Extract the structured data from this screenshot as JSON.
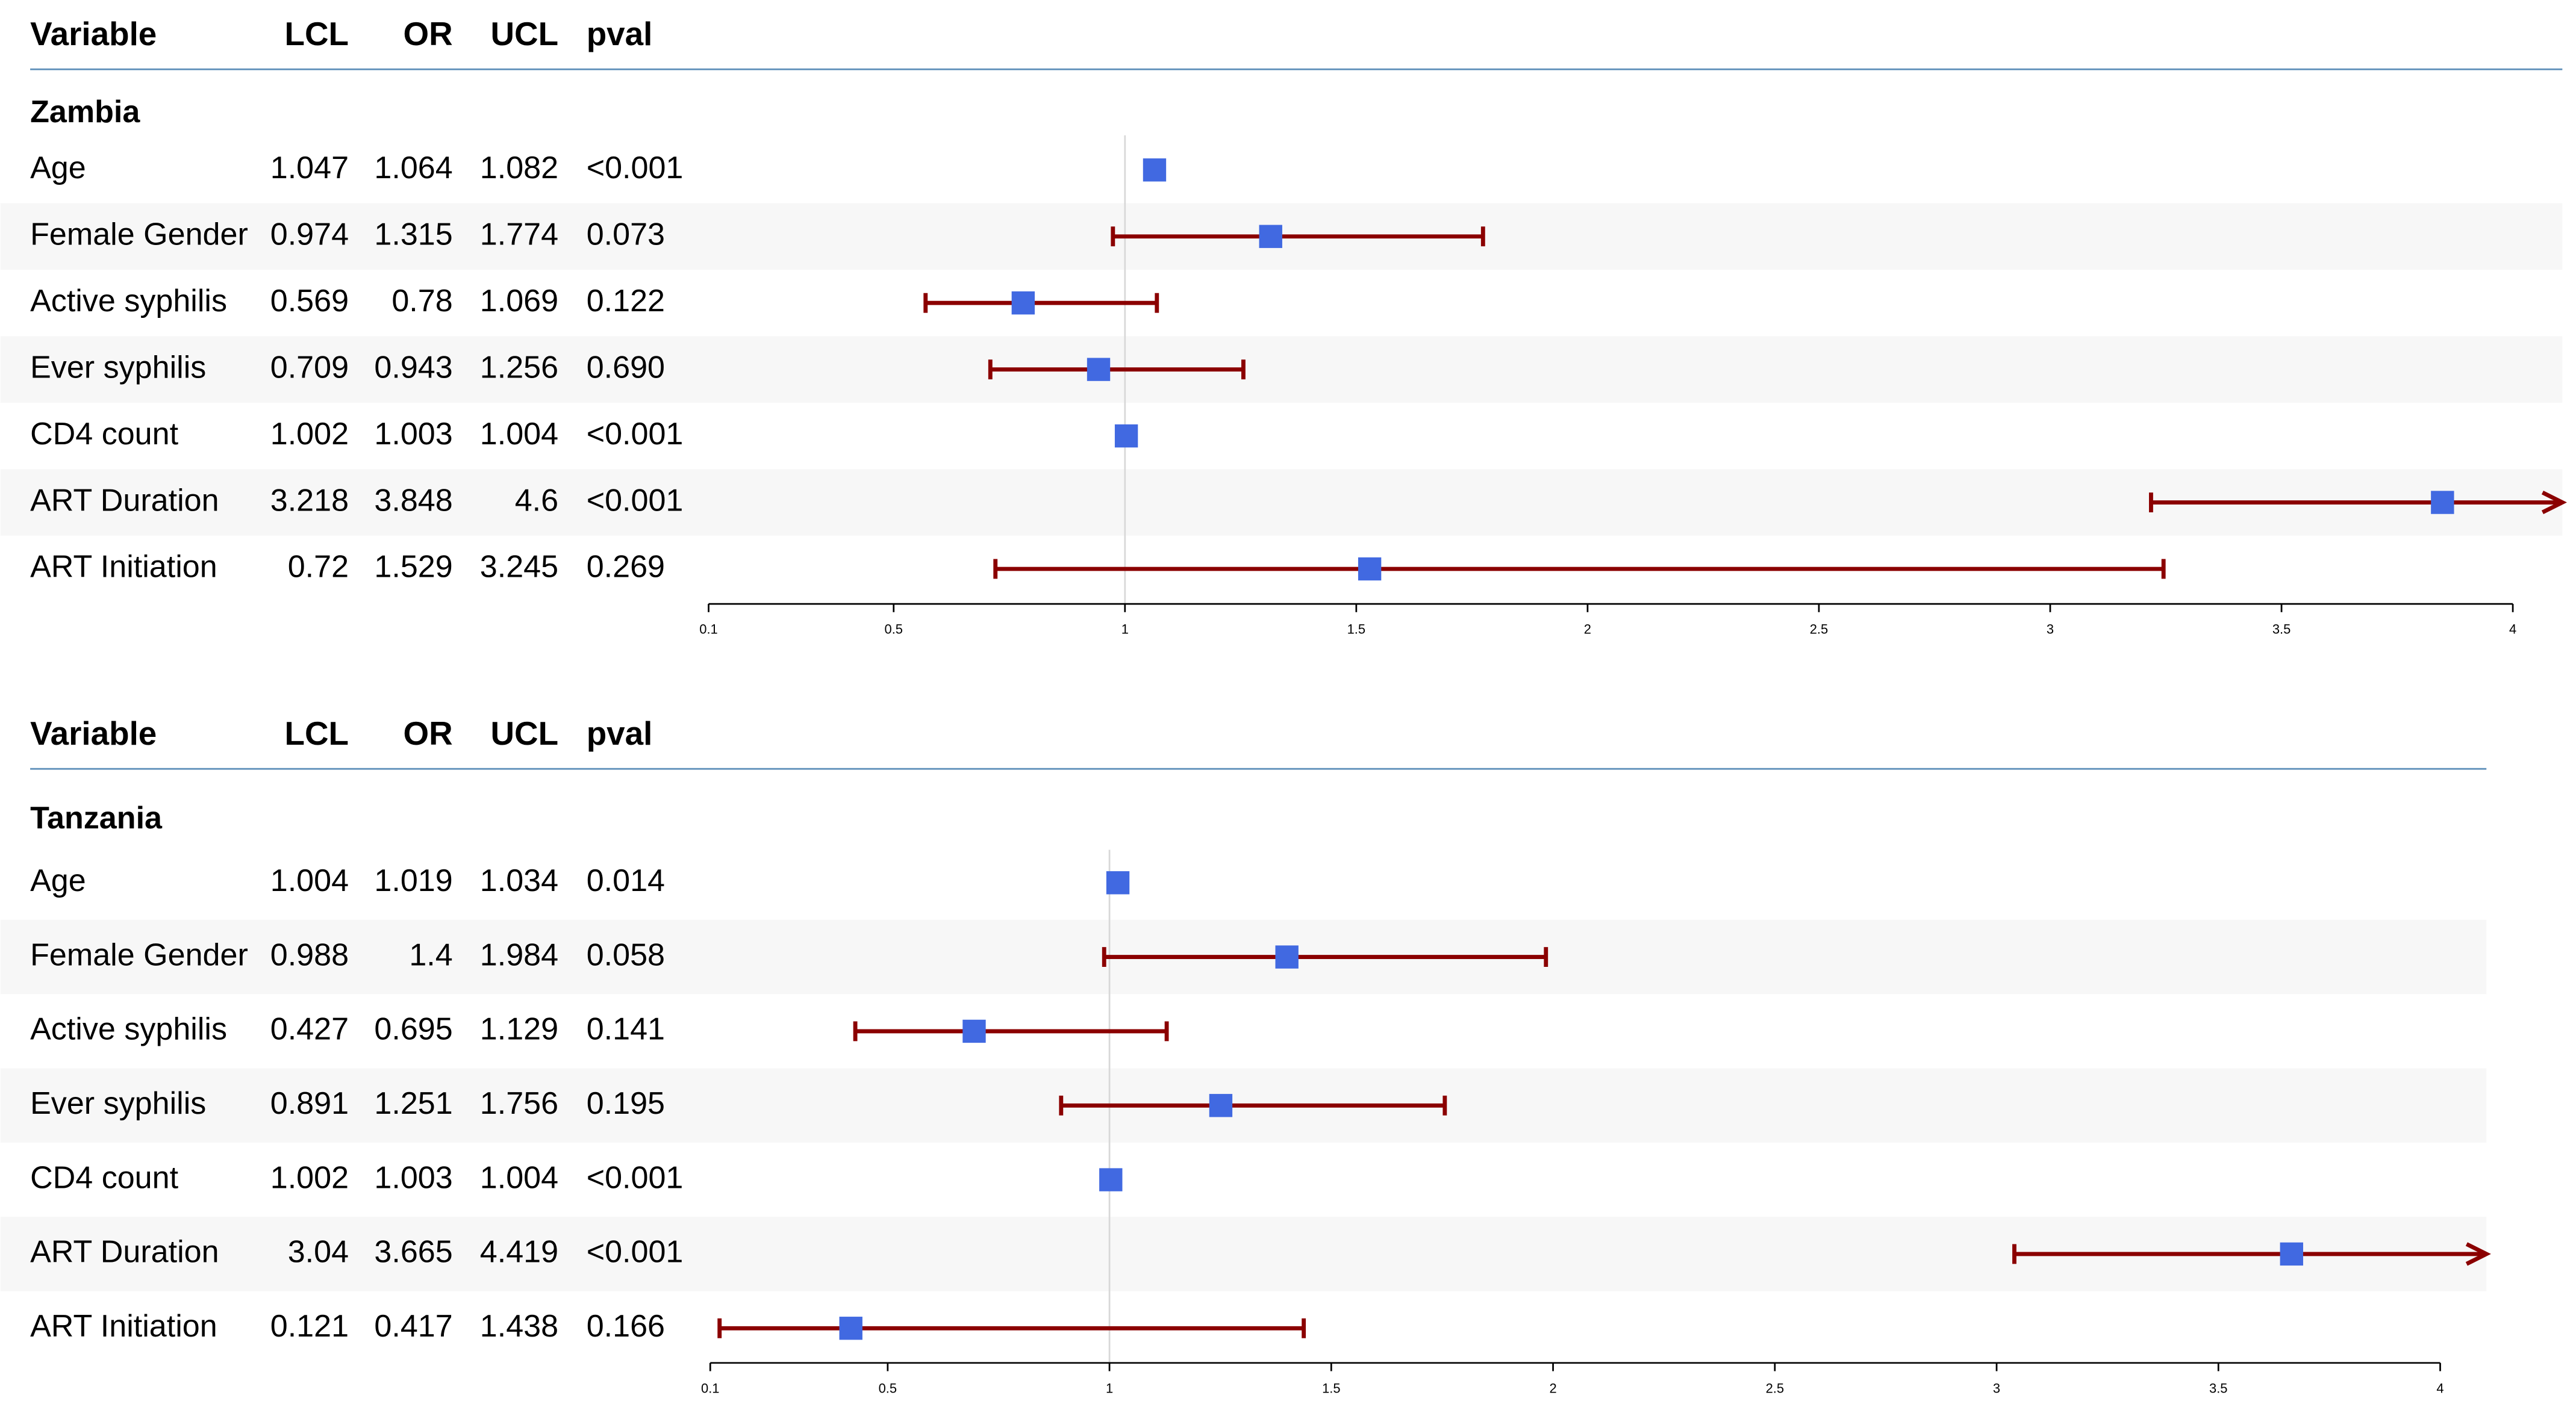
{
  "chart_data": [
    {
      "type": "forest",
      "columns": [
        "Variable",
        "LCL",
        "OR",
        "UCL",
        "pval"
      ],
      "group": "Zambia",
      "rows": [
        {
          "variable": "Age",
          "lcl": 1.047,
          "or": 1.064,
          "ucl": 1.082,
          "pval": "<0.001"
        },
        {
          "variable": "Female Gender",
          "lcl": 0.974,
          "or": 1.315,
          "ucl": 1.774,
          "pval": "0.073"
        },
        {
          "variable": "Active syphilis",
          "lcl": 0.569,
          "or": 0.78,
          "ucl": 1.069,
          "pval": "0.122"
        },
        {
          "variable": "Ever syphilis",
          "lcl": 0.709,
          "or": 0.943,
          "ucl": 1.256,
          "pval": "0.690"
        },
        {
          "variable": "CD4 count",
          "lcl": 1.002,
          "or": 1.003,
          "ucl": 1.004,
          "pval": "<0.001"
        },
        {
          "variable": "ART Duration",
          "lcl": 3.218,
          "or": 3.848,
          "ucl": 4.6,
          "pval": "<0.001"
        },
        {
          "variable": "ART Initiation",
          "lcl": 0.72,
          "or": 1.529,
          "ucl": 3.245,
          "pval": "0.269"
        }
      ],
      "xlim": [
        0.1,
        4
      ],
      "xticks": [
        0.1,
        0.5,
        1,
        1.5,
        2,
        2.5,
        3,
        3.5,
        4
      ],
      "ref_line": 1,
      "point_color": "#4169e1",
      "ci_color": "#8b0000"
    },
    {
      "type": "forest",
      "columns": [
        "Variable",
        "LCL",
        "OR",
        "UCL",
        "pval"
      ],
      "group": "Tanzania",
      "rows": [
        {
          "variable": "Age",
          "lcl": 1.004,
          "or": 1.019,
          "ucl": 1.034,
          "pval": "0.014"
        },
        {
          "variable": "Female Gender",
          "lcl": 0.988,
          "or": 1.4,
          "ucl": 1.984,
          "pval": "0.058"
        },
        {
          "variable": "Active syphilis",
          "lcl": 0.427,
          "or": 0.695,
          "ucl": 1.129,
          "pval": "0.141"
        },
        {
          "variable": "Ever syphilis",
          "lcl": 0.891,
          "or": 1.251,
          "ucl": 1.756,
          "pval": "0.195"
        },
        {
          "variable": "CD4 count",
          "lcl": 1.002,
          "or": 1.003,
          "ucl": 1.004,
          "pval": "<0.001"
        },
        {
          "variable": "ART Duration",
          "lcl": 3.04,
          "or": 3.665,
          "ucl": 4.419,
          "pval": "<0.001"
        },
        {
          "variable": "ART Initiation",
          "lcl": 0.121,
          "or": 0.417,
          "ucl": 1.438,
          "pval": "0.166"
        }
      ],
      "xlim": [
        0.1,
        4
      ],
      "xticks": [
        0.1,
        0.5,
        1,
        1.5,
        2,
        2.5,
        3,
        3.5,
        4
      ],
      "ref_line": 1,
      "point_color": "#4169e1",
      "ci_color": "#8b0000"
    }
  ]
}
